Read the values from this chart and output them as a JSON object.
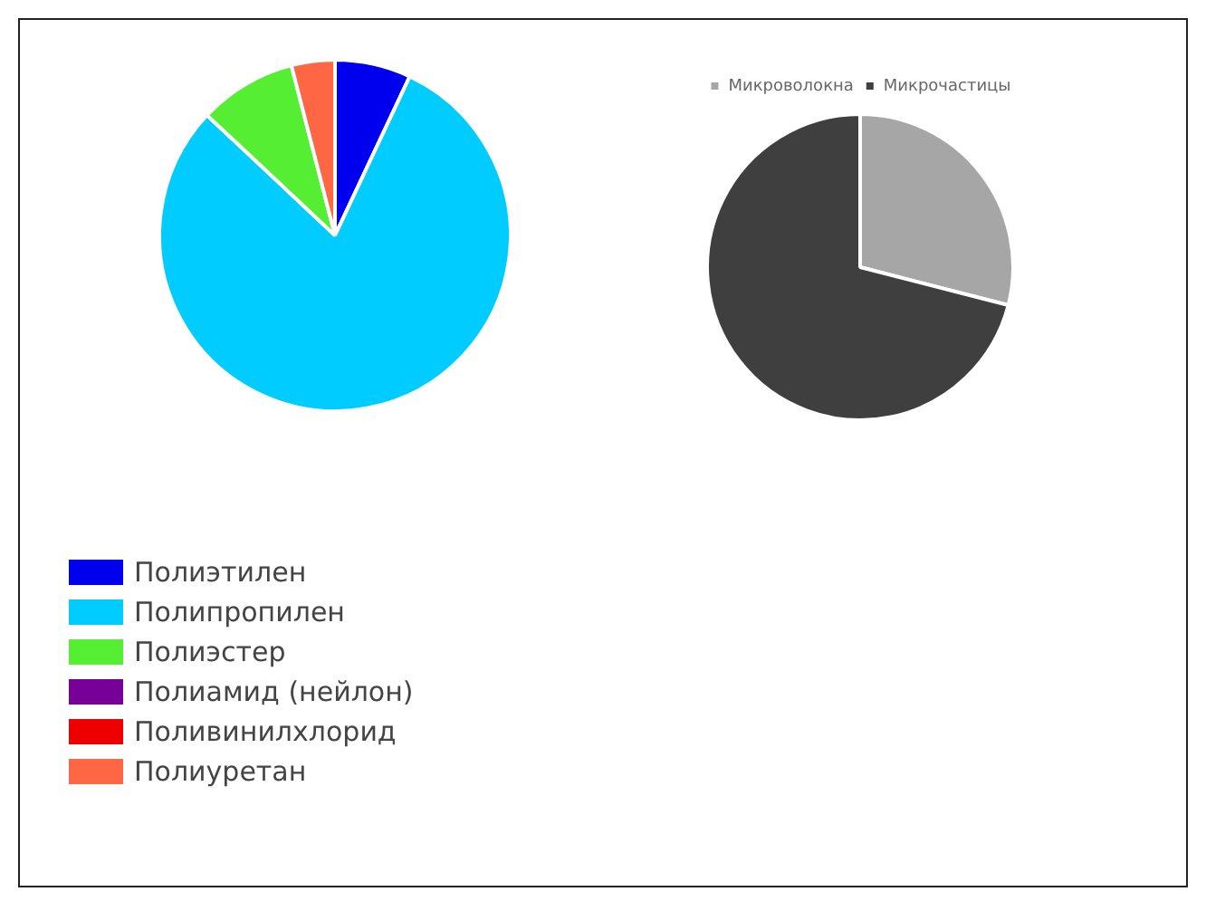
{
  "chart_data": [
    {
      "type": "pie",
      "categories": [
        "Полиэтилен",
        "Полипропилен",
        "Полиэстер",
        "Полиамид (нейлон)",
        "Поливинилхлорид",
        "Полиуретан"
      ],
      "values": [
        7,
        80,
        9,
        0,
        0,
        4
      ],
      "colors": [
        "#0000ee",
        "#00ccff",
        "#55ee33",
        "#770099",
        "#ee0000",
        "#ff6644"
      ],
      "legend": "bottom left"
    },
    {
      "type": "pie",
      "categories": [
        "Микроволокна",
        "Микрочастицы"
      ],
      "values": [
        29,
        71
      ],
      "colors": [
        "#a6a6a6",
        "#3f3f3f"
      ],
      "legend": "top"
    }
  ]
}
